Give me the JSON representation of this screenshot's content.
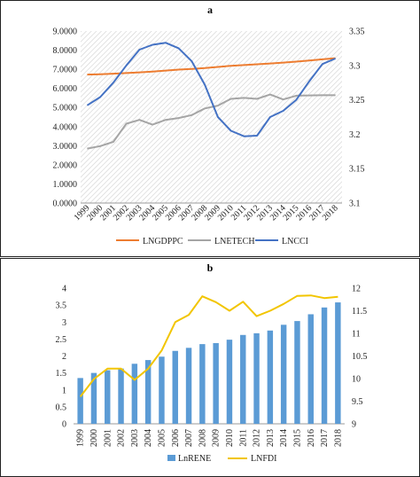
{
  "chart_data": [
    {
      "type": "line",
      "title": "a",
      "categories": [
        "1999",
        "2000",
        "2001",
        "2002",
        "2003",
        "2004",
        "2005",
        "2006",
        "2007",
        "2008",
        "2009",
        "2010",
        "2011",
        "2012",
        "2013",
        "2014",
        "2015",
        "2016",
        "2017",
        "2018"
      ],
      "y_left_ticks": [
        "0.0000",
        "1.0000",
        "2.0000",
        "3.0000",
        "4.0000",
        "5.0000",
        "6.0000",
        "7.0000",
        "8.0000",
        "9.0000"
      ],
      "y_right_ticks": [
        "3.1",
        "3.15",
        "3.2",
        "3.25",
        "3.3",
        "3.35"
      ],
      "ylim_left": [
        0,
        9
      ],
      "ylim_right": [
        3.1,
        3.35
      ],
      "grid": "hatched plot background",
      "legend_position": "bottom",
      "series": [
        {
          "name": "LNGDPPC",
          "axis": "left",
          "color": "#ED7D31",
          "values": [
            6.72,
            6.74,
            6.77,
            6.8,
            6.84,
            6.88,
            6.93,
            6.98,
            7.02,
            7.06,
            7.12,
            7.18,
            7.22,
            7.26,
            7.3,
            7.35,
            7.4,
            7.46,
            7.52,
            7.58
          ]
        },
        {
          "name": "LNETECH",
          "axis": "left",
          "color": "#A5A5A5",
          "values": [
            2.85,
            2.98,
            3.2,
            4.15,
            4.35,
            4.1,
            4.35,
            4.45,
            4.6,
            4.95,
            5.1,
            5.45,
            5.5,
            5.45,
            5.68,
            5.42,
            5.62,
            5.63,
            5.64,
            5.64
          ]
        },
        {
          "name": "LNCCI",
          "axis": "right",
          "color": "#4472C4",
          "values": [
            3.242,
            3.254,
            3.275,
            3.3,
            3.323,
            3.33,
            3.333,
            3.325,
            3.306,
            3.272,
            3.225,
            3.205,
            3.197,
            3.198,
            3.225,
            3.234,
            3.25,
            3.277,
            3.302,
            3.31
          ]
        }
      ]
    },
    {
      "type": "bar",
      "title": "b",
      "categories": [
        "1999",
        "2000",
        "2001",
        "2002",
        "2003",
        "2004",
        "2005",
        "2006",
        "2007",
        "2008",
        "2009",
        "2010",
        "2011",
        "2012",
        "2013",
        "2014",
        "2015",
        "2016",
        "2017",
        "2018"
      ],
      "y_left_ticks": [
        "0",
        "0.5",
        "1",
        "1.5",
        "2",
        "2.5",
        "3",
        "3.5",
        "4"
      ],
      "y_right_ticks": [
        "9",
        "9.5",
        "10",
        "10.5",
        "11",
        "11.5",
        "12"
      ],
      "ylim_left": [
        0,
        4
      ],
      "ylim_right": [
        9,
        12
      ],
      "legend_position": "bottom",
      "series": [
        {
          "name": "LnRENE",
          "axis": "left",
          "type": "bar",
          "color": "#5B9BD5",
          "values": [
            1.35,
            1.5,
            1.58,
            1.63,
            1.77,
            1.88,
            1.98,
            2.15,
            2.24,
            2.35,
            2.38,
            2.48,
            2.62,
            2.67,
            2.75,
            2.92,
            3.03,
            3.23,
            3.43,
            3.58
          ]
        },
        {
          "name": "LNFDI",
          "axis": "right",
          "type": "line",
          "color": "#F2C500",
          "values": [
            9.6,
            9.99,
            10.22,
            10.22,
            9.97,
            10.22,
            10.62,
            11.25,
            11.41,
            11.82,
            11.69,
            11.5,
            11.7,
            11.38,
            11.5,
            11.65,
            11.83,
            11.84,
            11.78,
            11.81
          ]
        }
      ]
    }
  ]
}
